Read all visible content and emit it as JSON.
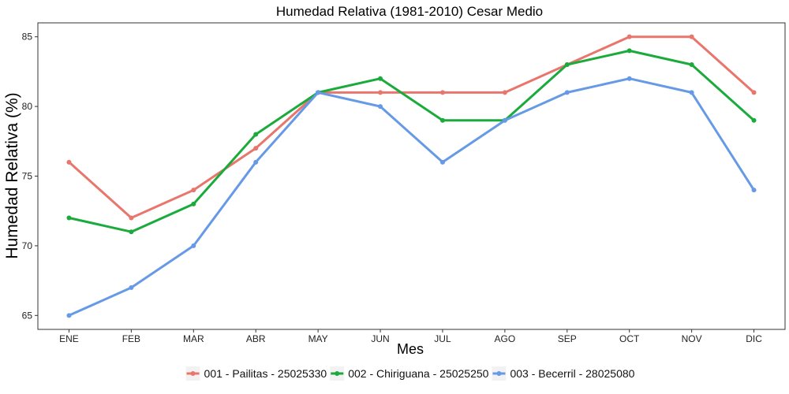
{
  "chart_data": {
    "type": "line",
    "title": "Humedad Relativa (1981-2010)  Cesar Medio",
    "xlabel": "Mes",
    "ylabel": "Humedad Relativa  (%)",
    "categories": [
      "ENE",
      "FEB",
      "MAR",
      "ABR",
      "MAY",
      "JUN",
      "JUL",
      "AGO",
      "SEP",
      "OCT",
      "NOV",
      "DIC"
    ],
    "yticks": [
      65,
      70,
      75,
      80,
      85
    ],
    "ylim": [
      64,
      86
    ],
    "grid": false,
    "legend_position": "bottom",
    "series": [
      {
        "name": "001 - Pailitas - 25025330",
        "color": "#E8766D",
        "values": [
          76,
          72,
          74,
          77,
          81,
          81,
          81,
          81,
          83,
          85,
          85,
          81
        ]
      },
      {
        "name": "002 - Chiriguana - 25025250",
        "color": "#1BAA3C",
        "values": [
          72,
          71,
          73,
          78,
          81,
          82,
          79,
          79,
          83,
          84,
          83,
          79
        ]
      },
      {
        "name": "003 - Becerril - 28025080",
        "color": "#6699E6",
        "values": [
          65,
          67,
          70,
          76,
          81,
          80,
          76,
          79,
          81,
          82,
          81,
          74
        ]
      }
    ]
  }
}
